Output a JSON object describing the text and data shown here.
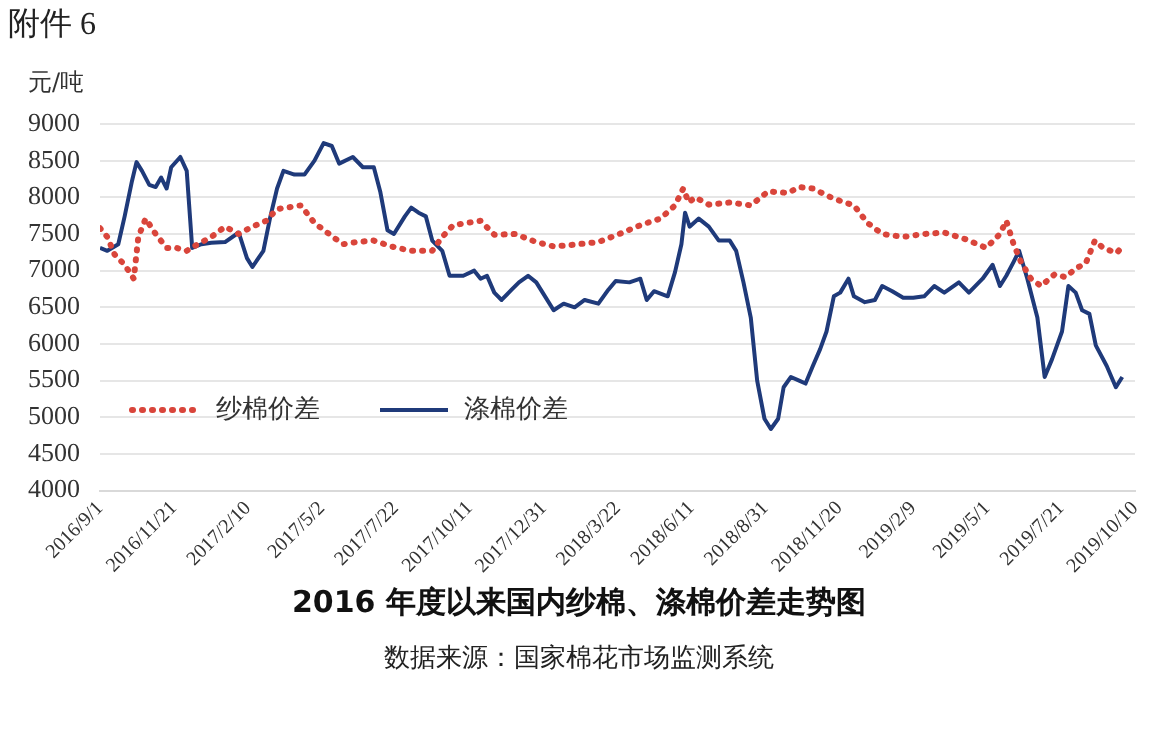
{
  "chart_data": {
    "type": "line",
    "title": "2016 年度以来国内纱棉、涤棉价差走势图",
    "ylabel": "元/吨",
    "annotations": [
      "附件 6",
      "数据来源：国家棉花市场监测系统"
    ],
    "xlim": [
      "2016-09-01",
      "2019-10-10"
    ],
    "xticks": [
      {
        "value": "2016-09-01",
        "label": "2016/9/1"
      },
      {
        "value": "2016-11-21",
        "label": "2016/11/21"
      },
      {
        "value": "2017-02-10",
        "label": "2017/2/10"
      },
      {
        "value": "2017-05-02",
        "label": "2017/5/2"
      },
      {
        "value": "2017-07-22",
        "label": "2017/7/22"
      },
      {
        "value": "2017-10-11",
        "label": "2017/10/11"
      },
      {
        "value": "2017-12-31",
        "label": "2017/12/31"
      },
      {
        "value": "2018-03-22",
        "label": "2018/3/22"
      },
      {
        "value": "2018-06-11",
        "label": "2018/6/11"
      },
      {
        "value": "2018-08-31",
        "label": "2018/8/31"
      },
      {
        "value": "2018-11-20",
        "label": "2018/11/20"
      },
      {
        "value": "2019-02-09",
        "label": "2019/2/9"
      },
      {
        "value": "2019-05-01",
        "label": "2019/5/1"
      },
      {
        "value": "2019-07-21",
        "label": "2019/7/21"
      },
      {
        "value": "2019-10-10",
        "label": "2019/10/10"
      }
    ],
    "ylim": [
      4000,
      9000
    ],
    "yticks": [
      4000,
      4500,
      5000,
      5500,
      6000,
      6500,
      7000,
      7500,
      8000,
      8500,
      9000
    ],
    "grid": "y",
    "legend": "bottom left",
    "marker": "none",
    "series": [
      {
        "name": "纱棉价差",
        "color": "#d9453b",
        "line_style": "dotted",
        "x": [
          "2016-09-01",
          "2016-09-09",
          "2016-09-17",
          "2016-09-28",
          "2016-10-08",
          "2016-10-13",
          "2016-10-21",
          "2016-11-01",
          "2016-11-13",
          "2016-11-24",
          "2016-12-05",
          "2016-12-17",
          "2017-01-01",
          "2017-01-16",
          "2017-01-31",
          "2017-02-15",
          "2017-03-02",
          "2017-03-14",
          "2017-03-25",
          "2017-04-09",
          "2017-04-24",
          "2017-05-10",
          "2017-05-25",
          "2017-06-09",
          "2017-06-28",
          "2017-07-17",
          "2017-08-08",
          "2017-08-31",
          "2017-09-11",
          "2017-09-23",
          "2017-10-08",
          "2017-10-23",
          "2017-11-07",
          "2017-11-30",
          "2017-12-23",
          "2018-01-11",
          "2018-01-30",
          "2018-03-01",
          "2018-03-24",
          "2018-04-16",
          "2018-05-08",
          "2018-05-24",
          "2018-06-02",
          "2018-06-08",
          "2018-06-15",
          "2018-06-30",
          "2018-07-23",
          "2018-08-15",
          "2018-09-03",
          "2018-09-25",
          "2018-10-07",
          "2018-10-22",
          "2018-11-14",
          "2018-12-06",
          "2018-12-21",
          "2019-01-06",
          "2019-01-29",
          "2019-02-21",
          "2019-03-15",
          "2019-04-07",
          "2019-04-30",
          "2019-05-15",
          "2019-05-22",
          "2019-05-30",
          "2019-06-07",
          "2019-06-18",
          "2019-06-29",
          "2019-07-14",
          "2019-07-26",
          "2019-08-06",
          "2019-08-17",
          "2019-08-27",
          "2019-09-05",
          "2019-09-20",
          "2019-09-28"
        ],
        "values": [
          7580,
          7460,
          7220,
          7080,
          6890,
          7460,
          7710,
          7500,
          7310,
          7310,
          7270,
          7360,
          7460,
          7600,
          7500,
          7600,
          7680,
          7840,
          7860,
          7890,
          7650,
          7500,
          7360,
          7390,
          7410,
          7330,
          7270,
          7270,
          7460,
          7620,
          7650,
          7680,
          7490,
          7500,
          7390,
          7330,
          7350,
          7390,
          7500,
          7620,
          7710,
          7890,
          8120,
          7930,
          8000,
          7900,
          7930,
          7890,
          8080,
          8060,
          8140,
          8120,
          7980,
          7890,
          7650,
          7500,
          7460,
          7500,
          7520,
          7430,
          7310,
          7500,
          7680,
          7360,
          7120,
          6890,
          6790,
          6950,
          6910,
          7030,
          7100,
          7410,
          7310,
          7240,
          7360
        ]
      },
      {
        "name": "涤棉价差",
        "color": "#1f3a7a",
        "line_style": "solid",
        "x": [
          "2016-09-01",
          "2016-09-09",
          "2016-09-21",
          "2016-09-28",
          "2016-10-06",
          "2016-10-11",
          "2016-10-17",
          "2016-10-25",
          "2016-11-01",
          "2016-11-07",
          "2016-11-13",
          "2016-11-18",
          "2016-11-28",
          "2016-12-05",
          "2016-12-11",
          "2016-12-21",
          "2017-01-01",
          "2017-01-16",
          "2017-01-31",
          "2017-02-09",
          "2017-02-15",
          "2017-02-27",
          "2017-03-06",
          "2017-03-14",
          "2017-03-21",
          "2017-04-02",
          "2017-04-13",
          "2017-04-24",
          "2017-05-04",
          "2017-05-13",
          "2017-05-21",
          "2017-06-05",
          "2017-06-16",
          "2017-06-28",
          "2017-07-05",
          "2017-07-13",
          "2017-07-20",
          "2017-08-01",
          "2017-08-08",
          "2017-08-16",
          "2017-08-24",
          "2017-08-31",
          "2017-09-11",
          "2017-09-19",
          "2017-10-04",
          "2017-10-16",
          "2017-10-23",
          "2017-10-30",
          "2017-11-07",
          "2017-11-15",
          "2017-11-26",
          "2017-12-04",
          "2017-12-14",
          "2017-12-23",
          "2017-12-30",
          "2018-01-11",
          "2018-01-22",
          "2018-02-03",
          "2018-02-14",
          "2018-03-01",
          "2018-03-12",
          "2018-03-20",
          "2018-04-04",
          "2018-04-16",
          "2018-04-23",
          "2018-05-01",
          "2018-05-16",
          "2018-05-24",
          "2018-05-31",
          "2018-06-04",
          "2018-06-09",
          "2018-06-19",
          "2018-06-30",
          "2018-07-11",
          "2018-07-23",
          "2018-07-30",
          "2018-08-07",
          "2018-08-15",
          "2018-08-22",
          "2018-08-30",
          "2018-09-06",
          "2018-09-14",
          "2018-09-20",
          "2018-09-28",
          "2018-10-07",
          "2018-10-14",
          "2018-10-22",
          "2018-10-30",
          "2018-11-06",
          "2018-11-14",
          "2018-11-21",
          "2018-11-30",
          "2018-12-06",
          "2018-12-18",
          "2018-12-29",
          "2019-01-06",
          "2019-01-17",
          "2019-01-29",
          "2019-02-09",
          "2019-02-21",
          "2019-03-04",
          "2019-03-15",
          "2019-03-31",
          "2019-04-11",
          "2019-04-26",
          "2019-05-07",
          "2019-05-15",
          "2019-05-22",
          "2019-05-30",
          "2019-06-05",
          "2019-06-14",
          "2019-06-25",
          "2019-07-03",
          "2019-07-11",
          "2019-07-22",
          "2019-07-29",
          "2019-08-06",
          "2019-08-13",
          "2019-08-21",
          "2019-08-28",
          "2019-09-09",
          "2019-09-19",
          "2019-09-26"
        ],
        "values": [
          7310,
          7270,
          7360,
          7740,
          8220,
          8480,
          8360,
          8170,
          8140,
          8270,
          8120,
          8410,
          8550,
          8360,
          7310,
          7360,
          7380,
          7390,
          7520,
          7170,
          7050,
          7270,
          7700,
          8120,
          8360,
          8310,
          8310,
          8500,
          8740,
          8700,
          8460,
          8550,
          8410,
          8410,
          8080,
          7550,
          7500,
          7740,
          7860,
          7790,
          7740,
          7410,
          7270,
          6930,
          6930,
          7000,
          6890,
          6930,
          6700,
          6600,
          6740,
          6840,
          6930,
          6840,
          6700,
          6460,
          6550,
          6500,
          6600,
          6550,
          6740,
          6860,
          6840,
          6890,
          6600,
          6720,
          6650,
          6980,
          7360,
          7790,
          7600,
          7710,
          7600,
          7410,
          7410,
          7270,
          6840,
          6360,
          5500,
          4980,
          4840,
          4980,
          5410,
          5550,
          5500,
          5460,
          5700,
          5930,
          6170,
          6650,
          6700,
          6890,
          6650,
          6570,
          6600,
          6790,
          6720,
          6630,
          6630,
          6650,
          6790,
          6700,
          6840,
          6700,
          6890,
          7080,
          6790,
          6930,
          7120,
          7270,
          6890,
          6360,
          5550,
          5790,
          6170,
          6790,
          6700,
          6460,
          6410,
          5980,
          5700,
          5410,
          5550
        ]
      }
    ]
  }
}
